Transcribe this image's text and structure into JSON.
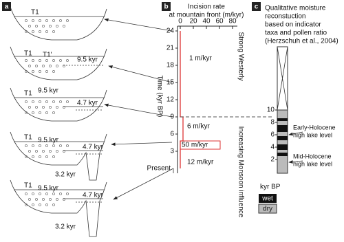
{
  "panel_a": {
    "label": "a",
    "sketches": [
      {
        "labels": [
          "T1"
        ]
      },
      {
        "labels": [
          "T1",
          "T1'",
          "9.5 kyr"
        ]
      },
      {
        "labels": [
          "T1",
          "9.5 kyr",
          "4.7 kyr"
        ]
      },
      {
        "labels": [
          "T1",
          "9.5 kyr",
          "4.7 kyr",
          "3.2 kyr"
        ]
      },
      {
        "labels": [
          "T1",
          "9.5 kyr",
          "4.7 kyr",
          "3.2 kyr"
        ]
      }
    ]
  },
  "panel_b": {
    "label": "b",
    "title_lines": [
      "Incision rate",
      "at mountain front (m/kyr)"
    ],
    "x_ticks": [
      0,
      20,
      40,
      60,
      80
    ],
    "y_label": "Time (kyr BP)",
    "y_ticks": [
      24,
      21,
      18,
      15,
      12,
      9,
      6,
      3
    ],
    "y_end_label": "Present",
    "rates": [
      "1 m/kyr",
      "6 m/kyr",
      "50 m/kyr",
      "12 m/kyr"
    ],
    "phases": [
      "Strong Westerly",
      "Increasing Monsoon influence"
    ]
  },
  "panel_c": {
    "label": "c",
    "title_lines": [
      "Qualitative moisture",
      "reconstuction",
      "based on indicator",
      "taxa and pollen ratio",
      "(Herzschuh et al., 2004)"
    ],
    "ticks": [
      10,
      8,
      6,
      4,
      2
    ],
    "annotations": [
      [
        "Early-Holocene",
        "high lake level"
      ],
      [
        "Mid-Holocene",
        "high lake level"
      ]
    ],
    "unit": "kyr BP",
    "legend": [
      "wet",
      "dry"
    ]
  }
}
